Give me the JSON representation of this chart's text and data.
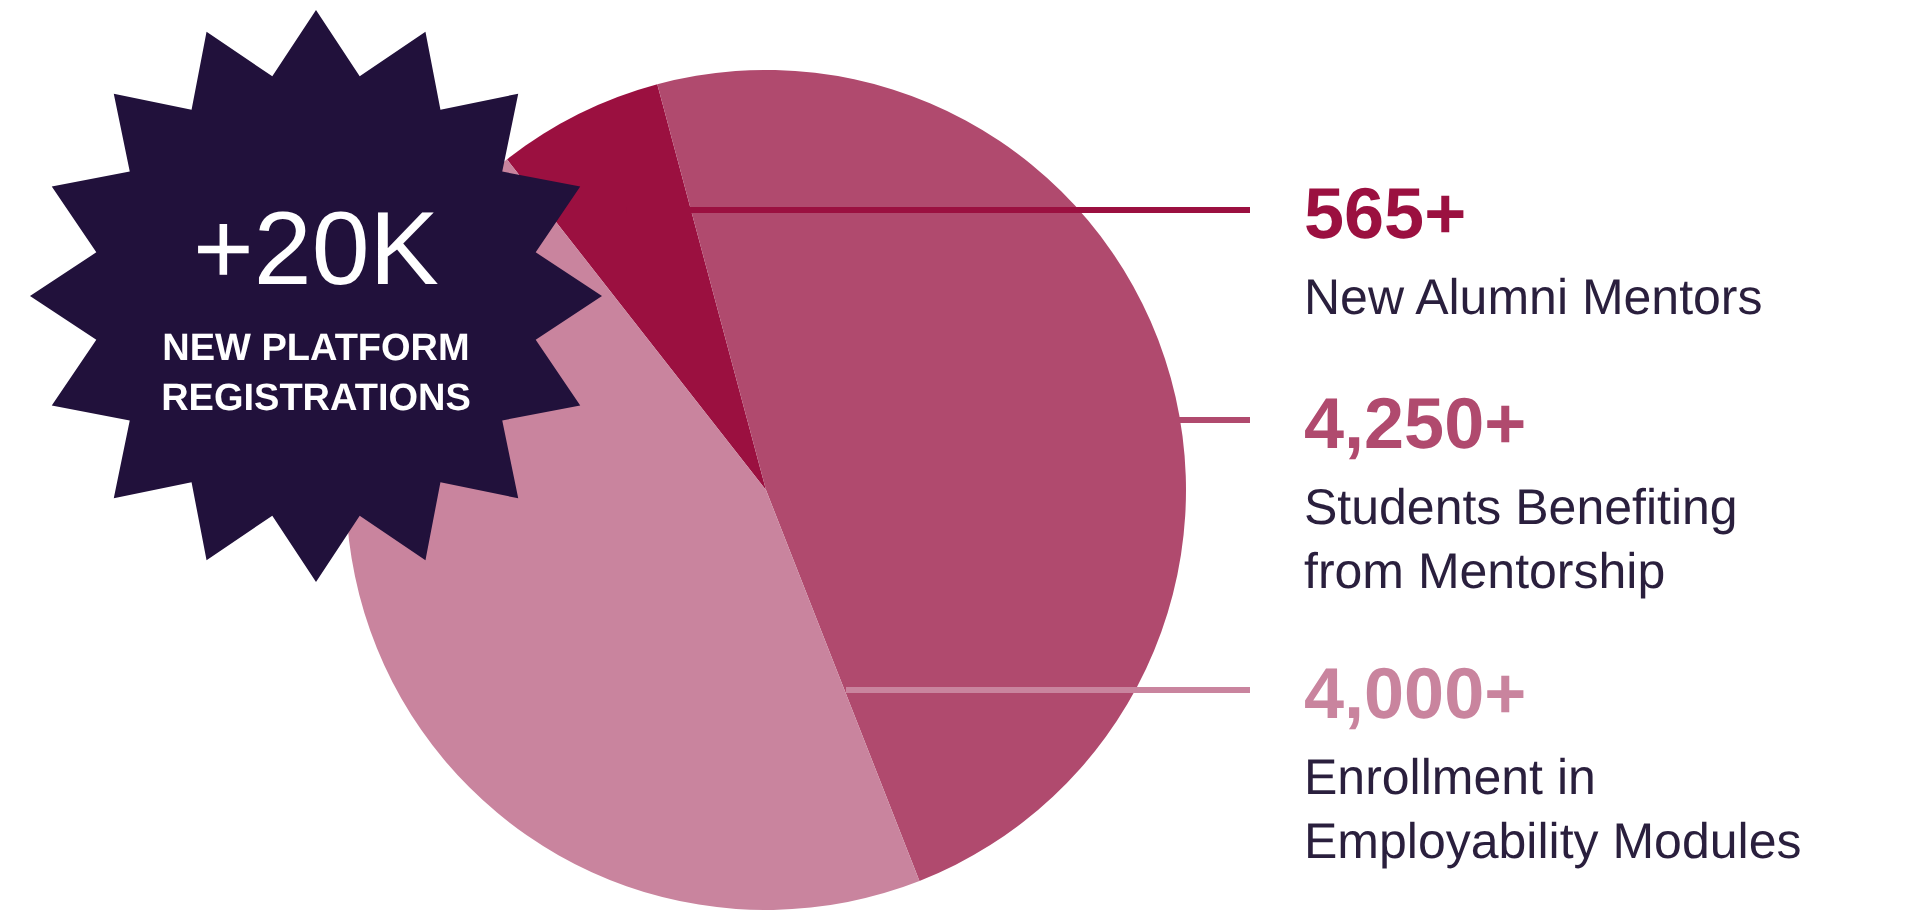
{
  "chart_data": {
    "type": "pie",
    "categories": [
      "New Alumni Mentors",
      "Students Benefiting from Mentorship",
      "Enrollment in Employability Modules"
    ],
    "values": [
      565,
      4250,
      4000
    ],
    "value_labels": [
      "565+",
      "4,250+",
      "4,000+"
    ],
    "colors": [
      "#9b1040",
      "#b04a6e",
      "#c9849e"
    ],
    "annotations": [
      "+20K",
      "NEW PLATFORM REGISTRATIONS"
    ]
  }
}
